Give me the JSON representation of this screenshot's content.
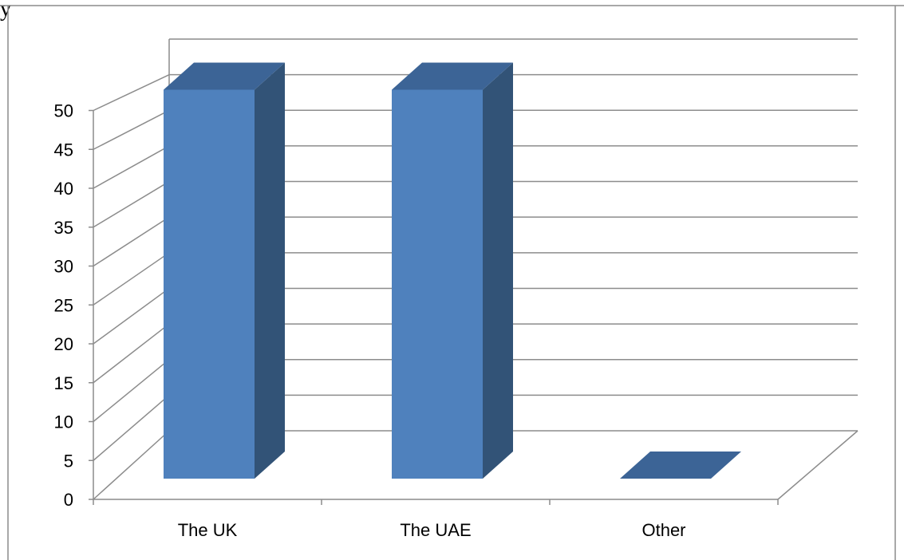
{
  "chart_data": {
    "type": "bar",
    "style": "3d-column",
    "categories": [
      "The UK",
      "The UAE",
      "Other"
    ],
    "values": [
      50,
      50,
      0
    ],
    "ylim": [
      0,
      50
    ],
    "yticks": [
      "0",
      "5",
      "10",
      "15",
      "20",
      "25",
      "30",
      "35",
      "40",
      "45",
      "50"
    ],
    "title": "",
    "xlabel": "",
    "ylabel": "",
    "grid": true,
    "legend": "none",
    "colors": {
      "front": "#4f81bd",
      "top": "#3c6496",
      "side": "#325377",
      "grid": "#8c8c8c"
    }
  },
  "fragment_text": "y"
}
